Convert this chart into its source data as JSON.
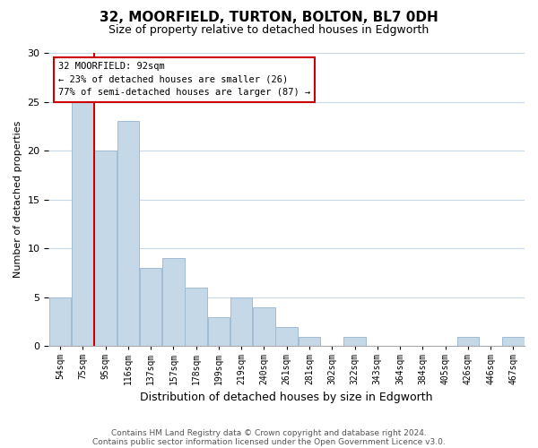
{
  "title": "32, MOORFIELD, TURTON, BOLTON, BL7 0DH",
  "subtitle": "Size of property relative to detached houses in Edgworth",
  "xlabel": "Distribution of detached houses by size in Edgworth",
  "ylabel": "Number of detached properties",
  "bar_labels": [
    "54sqm",
    "75sqm",
    "95sqm",
    "116sqm",
    "137sqm",
    "157sqm",
    "178sqm",
    "199sqm",
    "219sqm",
    "240sqm",
    "261sqm",
    "281sqm",
    "302sqm",
    "322sqm",
    "343sqm",
    "364sqm",
    "384sqm",
    "405sqm",
    "426sqm",
    "446sqm",
    "467sqm"
  ],
  "bar_values": [
    5,
    25,
    20,
    23,
    8,
    9,
    6,
    3,
    5,
    4,
    2,
    1,
    0,
    1,
    0,
    0,
    0,
    0,
    1,
    0,
    1
  ],
  "bar_color": "#c5d8e8",
  "bar_edge_color": "#a0bcd4",
  "ylim": [
    0,
    30
  ],
  "yticks": [
    0,
    5,
    10,
    15,
    20,
    25,
    30
  ],
  "vline_index": 2,
  "vline_color": "#cc0000",
  "annotation_title": "32 MOORFIELD: 92sqm",
  "annotation_line1": "← 23% of detached houses are smaller (26)",
  "annotation_line2": "77% of semi-detached houses are larger (87) →",
  "annotation_box_color": "#cc0000",
  "footer_line1": "Contains HM Land Registry data © Crown copyright and database right 2024.",
  "footer_line2": "Contains public sector information licensed under the Open Government Licence v3.0.",
  "bg_color": "#ffffff",
  "grid_color": "#c8d8e8"
}
